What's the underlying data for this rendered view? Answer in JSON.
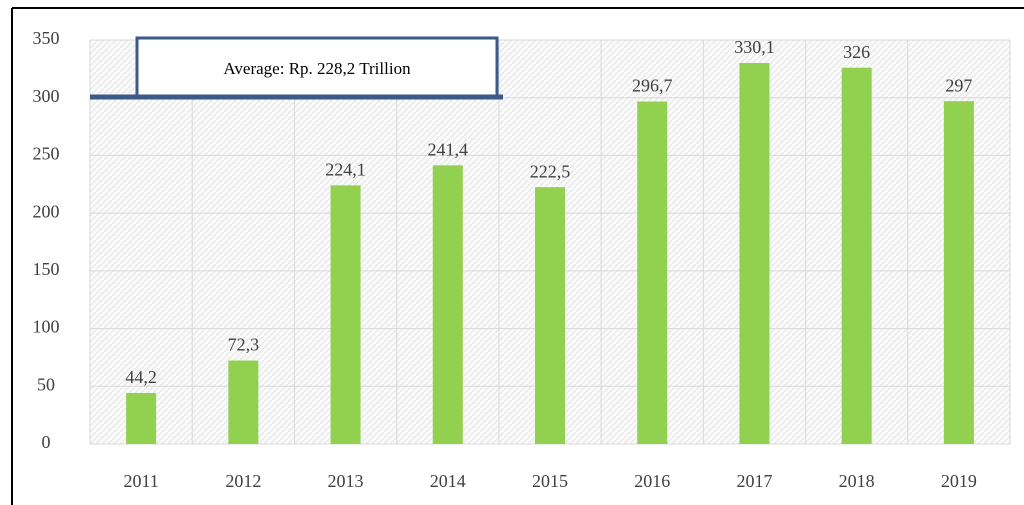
{
  "chart_data": {
    "type": "bar",
    "categories": [
      "2011",
      "2012",
      "2013",
      "2014",
      "2015",
      "2016",
      "2017",
      "2018",
      "2019"
    ],
    "values": [
      44.2,
      72.3,
      224.1,
      241.4,
      222.5,
      296.7,
      330.1,
      326,
      297
    ],
    "value_labels": [
      "44,2",
      "72,3",
      "224,1",
      "241,4",
      "222,5",
      "296,7",
      "330,1",
      "326",
      "297"
    ],
    "color": "#92d050",
    "ylim": [
      0,
      350
    ],
    "yticks": [
      0,
      50,
      100,
      150,
      200,
      250,
      300,
      350
    ],
    "grid": true,
    "annotation": "Average: Rp. 228,2 Trillion"
  }
}
